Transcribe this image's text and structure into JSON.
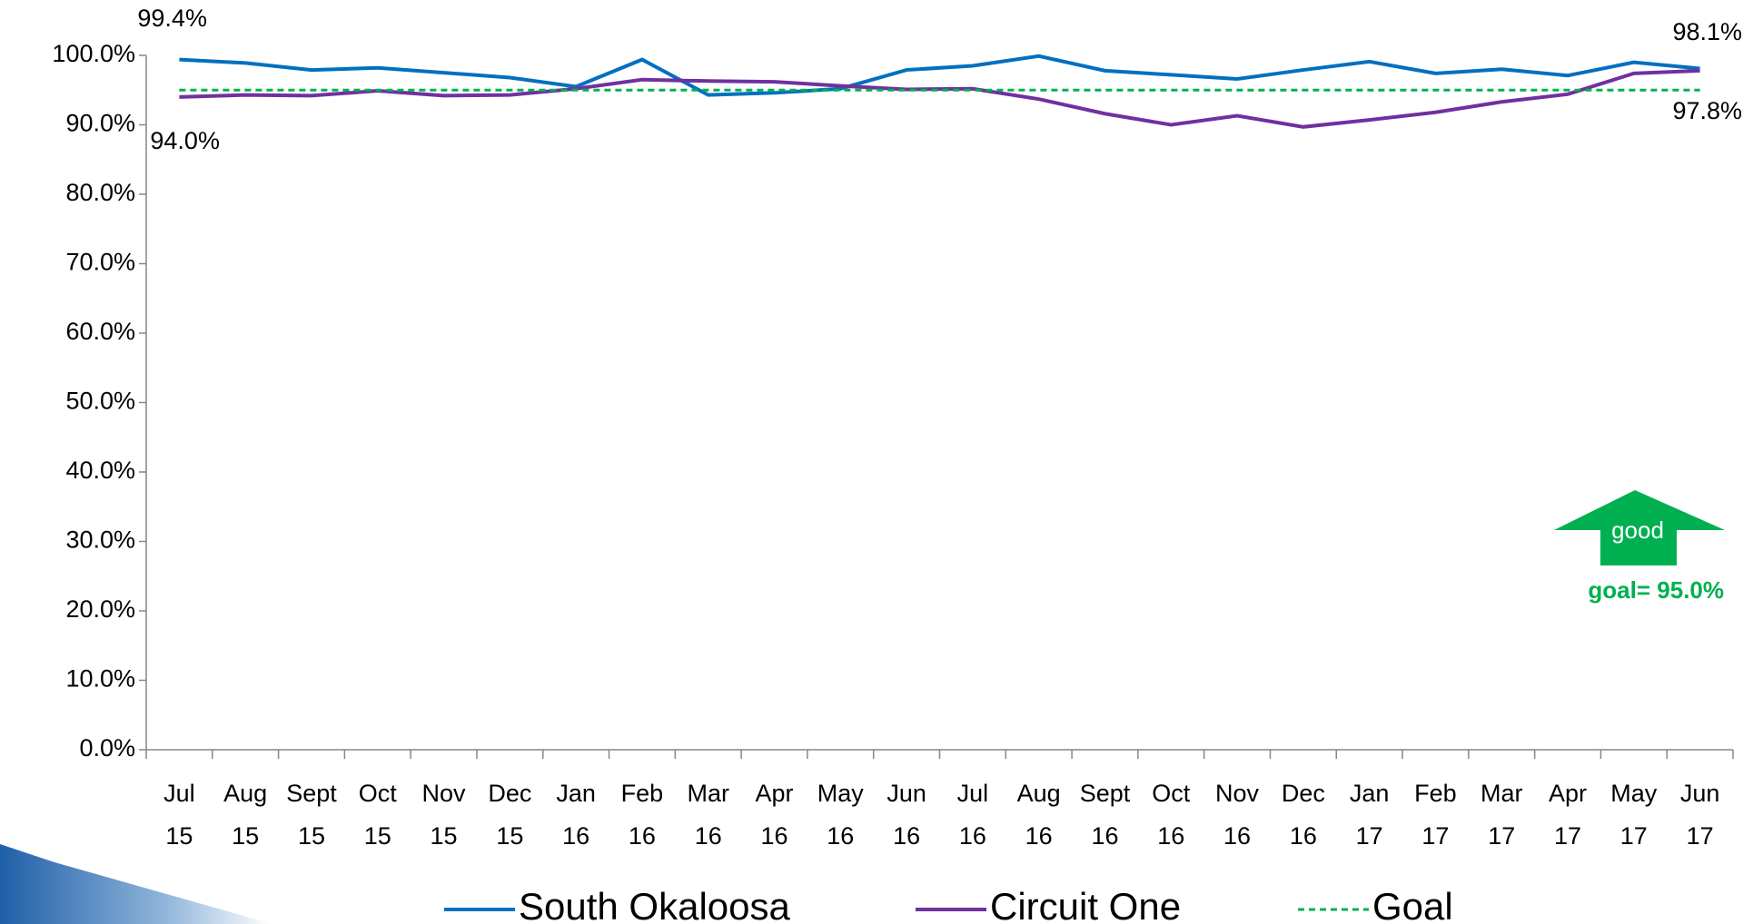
{
  "chart_data": {
    "type": "line",
    "categories": [
      "Jul 15",
      "Aug 15",
      "Sept 15",
      "Oct 15",
      "Nov 15",
      "Dec 15",
      "Jan 16",
      "Feb 16",
      "Mar 16",
      "Apr 16",
      "May 16",
      "Jun 16",
      "Jul 16",
      "Aug 16",
      "Sept 16",
      "Oct 16",
      "Nov 16",
      "Dec 16",
      "Jan 17",
      "Feb 17",
      "Mar 17",
      "Apr 17",
      "May 17",
      "Jun 17"
    ],
    "series": [
      {
        "name": "South Okaloosa",
        "color": "#0070c0",
        "values": [
          99.4,
          98.9,
          97.9,
          98.2,
          97.5,
          96.8,
          95.5,
          99.4,
          94.3,
          94.6,
          95.2,
          97.9,
          98.5,
          99.9,
          97.8,
          97.2,
          96.6,
          97.9,
          99.1,
          97.4,
          98.0,
          97.1,
          99.0,
          98.1
        ],
        "value_labels": [
          "99.4%",
          null,
          null,
          null,
          null,
          null,
          null,
          null,
          null,
          null,
          null,
          null,
          null,
          null,
          null,
          null,
          null,
          null,
          null,
          null,
          null,
          null,
          null,
          "98.1%"
        ]
      },
      {
        "name": "Circuit One",
        "color": "#7030a0",
        "values": [
          94.0,
          94.3,
          94.2,
          94.9,
          94.2,
          94.3,
          95.2,
          96.5,
          96.3,
          96.2,
          95.6,
          95.1,
          95.2,
          93.7,
          91.6,
          90.0,
          91.3,
          89.7,
          90.7,
          91.8,
          93.3,
          94.4,
          97.4,
          97.8
        ],
        "value_labels": [
          "94.0%",
          null,
          null,
          null,
          null,
          null,
          null,
          null,
          null,
          null,
          null,
          null,
          null,
          null,
          null,
          null,
          null,
          null,
          null,
          null,
          null,
          null,
          null,
          "97.8%"
        ]
      },
      {
        "name": "Goal",
        "color": "#00b050",
        "dashed": true,
        "values": [
          95,
          95,
          95,
          95,
          95,
          95,
          95,
          95,
          95,
          95,
          95,
          95,
          95,
          95,
          95,
          95,
          95,
          95,
          95,
          95,
          95,
          95,
          95,
          95
        ]
      }
    ],
    "ylim": [
      0,
      100
    ],
    "yticks": [
      {
        "value": 0,
        "label": "0.0%"
      },
      {
        "value": 10,
        "label": "10.0%"
      },
      {
        "value": 20,
        "label": "20.0%"
      },
      {
        "value": 30,
        "label": "30.0%"
      },
      {
        "value": 40,
        "label": "40.0%"
      },
      {
        "value": 50,
        "label": "50.0%"
      },
      {
        "value": 60,
        "label": "60.0%"
      },
      {
        "value": 70,
        "label": "70.0%"
      },
      {
        "value": 80,
        "label": "80.0%"
      },
      {
        "value": 90,
        "label": "90.0%"
      },
      {
        "value": 100,
        "label": "100.0%"
      }
    ],
    "annotations": [
      "good",
      "goal= 95.0%"
    ],
    "legend": "bottom"
  }
}
